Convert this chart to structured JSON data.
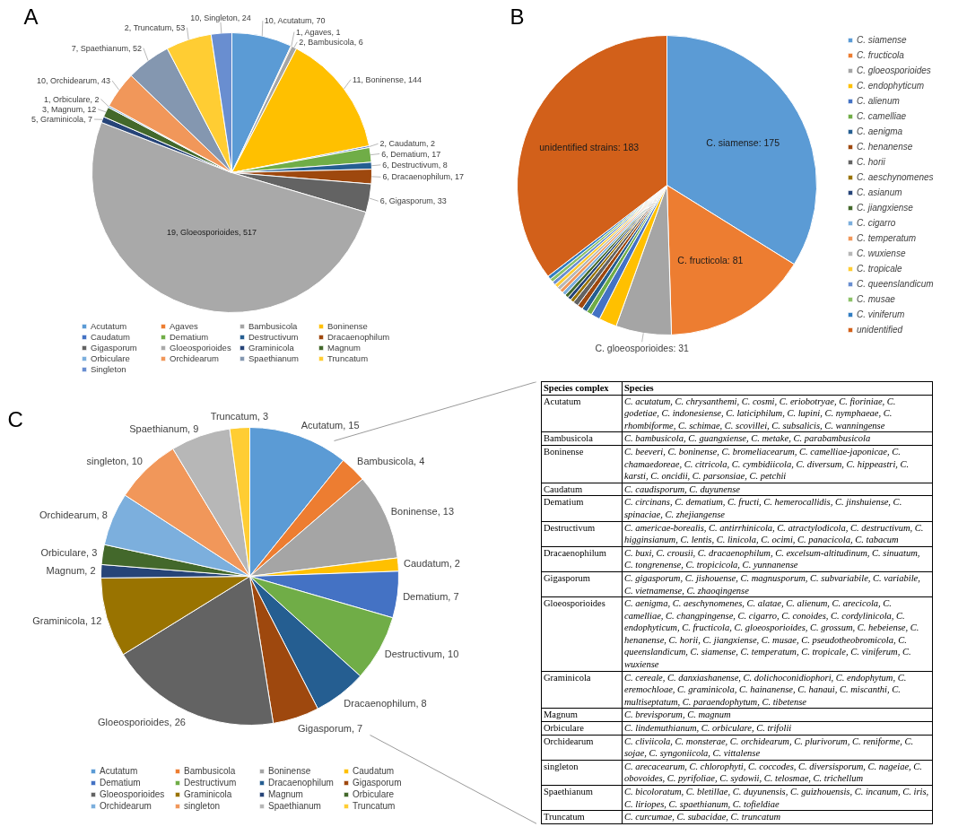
{
  "chart_data": [
    {
      "type": "pie",
      "title": "A",
      "categories": [
        "Acutatum",
        "Agaves",
        "Bambusicola",
        "Boninense",
        "Caudatum",
        "Dematium",
        "Destructivum",
        "Dracaenophilum",
        "Gigasporum",
        "Gloeosporioides",
        "Graminicola",
        "Magnum",
        "Orbiculare",
        "Orchidearum",
        "Spaethianum",
        "Truncatum",
        "Singleton"
      ],
      "values": [
        70,
        1,
        6,
        144,
        2,
        17,
        8,
        17,
        33,
        517,
        7,
        12,
        2,
        43,
        52,
        53,
        24
      ],
      "colors": [
        "#5b9bd5",
        "#ed7d31",
        "#a5a5a5",
        "#ffc000",
        "#4472c4",
        "#70ad47",
        "#255e91",
        "#9e480e",
        "#636363",
        "#a9a9a9",
        "#264478",
        "#43682b",
        "#7cafdd",
        "#f1975a",
        "#8497b0",
        "#ffcd33",
        "#698ed0"
      ],
      "value_labels": [
        "10, Acutatum, 70",
        "1, Agaves, 1",
        "2, Bambusicola, 6",
        "11, Boninense, 144",
        "2, Caudatum, 2",
        "6, Dematium, 17",
        "6, Destructivum, 8",
        "6, Dracaenophilum, 17",
        "6, Gigasporum, 33",
        "19, Gloeosporioides, 517",
        "5, Graminicola, 7",
        "3, Magnum, 12",
        "1, Orbiculare, 2",
        "10, Orchidearum, 43",
        "7, Spaethianum, 52",
        "2, Truncatum, 53",
        "10, Singleton, 24"
      ],
      "legend": "bottom"
    },
    {
      "type": "pie",
      "title": "B",
      "categories": [
        "C. siamense",
        "C. fructicola",
        "C. gloeosporioides",
        "C. endophyticum",
        "C. alienum",
        "C. camelliae",
        "C. aenigma",
        "C. henanense",
        "C. horii",
        "C. aeschynomenes",
        "C. asianum",
        "C. jiangxiense",
        "C. cigarro",
        "C. temperatum",
        "C. wuxiense",
        "C. tropicale",
        "C. queenslandicum",
        "C. musae",
        "C. viniferum",
        "unidentified"
      ],
      "values": [
        175,
        81,
        31,
        10,
        5,
        3,
        3,
        3,
        3,
        2,
        2,
        2,
        2,
        2,
        2,
        2,
        2,
        2,
        2,
        183
      ],
      "colors": [
        "#5b9bd5",
        "#ed7d31",
        "#a5a5a5",
        "#ffc000",
        "#4472c4",
        "#70ad47",
        "#255e91",
        "#9e480e",
        "#636363",
        "#997300",
        "#264478",
        "#43682b",
        "#7cafdd",
        "#f1975a",
        "#b7b7b7",
        "#ffcd33",
        "#698ed0",
        "#8cc168",
        "#327dc2",
        "#d2601a"
      ],
      "value_labels": [
        "C. siamense: 175",
        "C. fructicola: 81",
        "C. gloeosporioides: 31",
        null,
        null,
        null,
        null,
        null,
        null,
        null,
        null,
        null,
        null,
        null,
        null,
        null,
        null,
        null,
        null,
        "unidentified strains: 183"
      ],
      "legend": "right"
    },
    {
      "type": "pie",
      "title": "C",
      "categories": [
        "Acutatum",
        "Bambusicola",
        "Boninense",
        "Caudatum",
        "Dematium",
        "Destructivum",
        "Dracaenophilum",
        "Gigasporum",
        "Gloeosporioides",
        "Graminicola",
        "Magnum",
        "Orbiculare",
        "Orchidearum",
        "singleton",
        "Spaethianum",
        "Truncatum"
      ],
      "values": [
        15,
        4,
        13,
        2,
        7,
        10,
        8,
        7,
        26,
        12,
        2,
        3,
        8,
        10,
        9,
        3
      ],
      "colors": [
        "#5b9bd5",
        "#ed7d31",
        "#a5a5a5",
        "#ffc000",
        "#4472c4",
        "#70ad47",
        "#255e91",
        "#9e480e",
        "#636363",
        "#997300",
        "#264478",
        "#43682b",
        "#7cafdd",
        "#f1975a",
        "#b7b7b7",
        "#ffcd33"
      ],
      "value_labels": [
        "Acutatum, 15",
        "Bambusicola, 4",
        "Boninense, 13",
        "Caudatum, 2",
        "Dematium, 7",
        "Destructivum, 10",
        "Dracaenophilum, 8",
        "Gigasporum, 7",
        "Gloeosporioides, 26",
        "Graminicola, 12",
        "Magnum, 2",
        "Orbiculare, 3",
        "Orchidearum, 8",
        "singleton, 10",
        "Spaethianum, 9",
        "Truncatum, 3"
      ],
      "legend": "bottom"
    },
    {
      "type": "other",
      "categories": [
        "Acutatum",
        "Bambusicola",
        "Boninense",
        "Caudatum",
        "Dematium",
        "Destructivum",
        "Dracaenophilum",
        "Gigasporum",
        "Gloeosporioides",
        "Graminicola",
        "Magnum",
        "Orbiculare",
        "Orchidearum",
        "singleton",
        "Spaethianum",
        "Truncatum"
      ],
      "annotations": [
        "Species complex",
        "Species",
        "C. acutatum, C. chrysanthemi, C. cosmi, C. eriobotryae, C. fioriniae, C. godetiae, C. indonesiense, C. laticiphilum, C. lupini, C. nymphaeae, C. rhombiforme, C. schimae, C. scovillei, C. subsalicis, C. wanningense",
        "C. bambusicola, C. guangxiense, C. metake, C. parabambusicola",
        "C. beeveri, C. boninense, C. bromeliacearum, C. camelliae-japonicae, C. chamaedoreae, C. citricola, C. cymbidiicola, C. diversum, C. hippeastri, C. karsti, C. oncidii, C. parsonsiae, C. petchii",
        "C. caudisporum, C. duyunense",
        "C. circinans, C. dematium, C. fructi, C. hemerocallidis, C. jinshuiense, C. spinaciae, C. zhejiangense",
        "C. americae-borealis, C. antirrhinicola, C. atractylodicola, C. destructivum, C. higginsianum, C. lentis, C. linicola, C. ocimi, C. panacicola, C. tabacum",
        "C. buxi, C. crousii, C. dracaenophilum, C. excelsum-altitudinum, C. sinuatum, C. tongrenense, C. tropicicola, C. yunnanense",
        "C. gigasporum, C. jishouense, C. magnusporum, C. subvariabile, C. variabile, C. vietnamense, C. zhaoqingense",
        "C. aenigma, C. aeschynomenes, C. alatae, C. alienum, C. arecicola, C. camelliae, C. changpingense, C. cigarro, C. conoides, C. cordylinicola, C. endophyticum, C. fructicola, C. gloeosporioides, C. grossum, C. hebeiense, C. henanense, C. horii, C. jiangxiense, C. musae, C. pseudotheobromicola, C. queenslandicum, C. siamense, C. temperatum, C. tropicale, C. viniferum, C. wuxiense",
        "C. cereale, C. danxiashanense, C. dolichoconidiophori, C. endophytum, C. eremochloae, C. graminicola, C. hainanense, C. hanaui, C. miscanthi, C. multiseptatum, C. paraendophytum, C. tibetense",
        "C. brevisporum, C. magnum",
        "C. lindemuthianum, C. orbiculare, C. trifolii",
        "C. cliviicola, C. monsterae, C. orchidearum, C. plurivorum, C. reniforme, C. sojae, C. syngoniicola, C. vittalense",
        "C. arecacearum, C. chlorophyti, C. coccodes, C. diversisporum, C. nageiae, C. obovoides, C. pyrifoliae, C. sydowii, C. telosmae, C. trichellum",
        "C. bicoloratum, C. bletillae, C. duyunensis, C. guizhouensis, C. incanum, C. iris, C. liriopes, C. spaethianum, C. tofieldiae",
        "C. curcumae, C. subacidae, C. truncatum"
      ]
    }
  ]
}
